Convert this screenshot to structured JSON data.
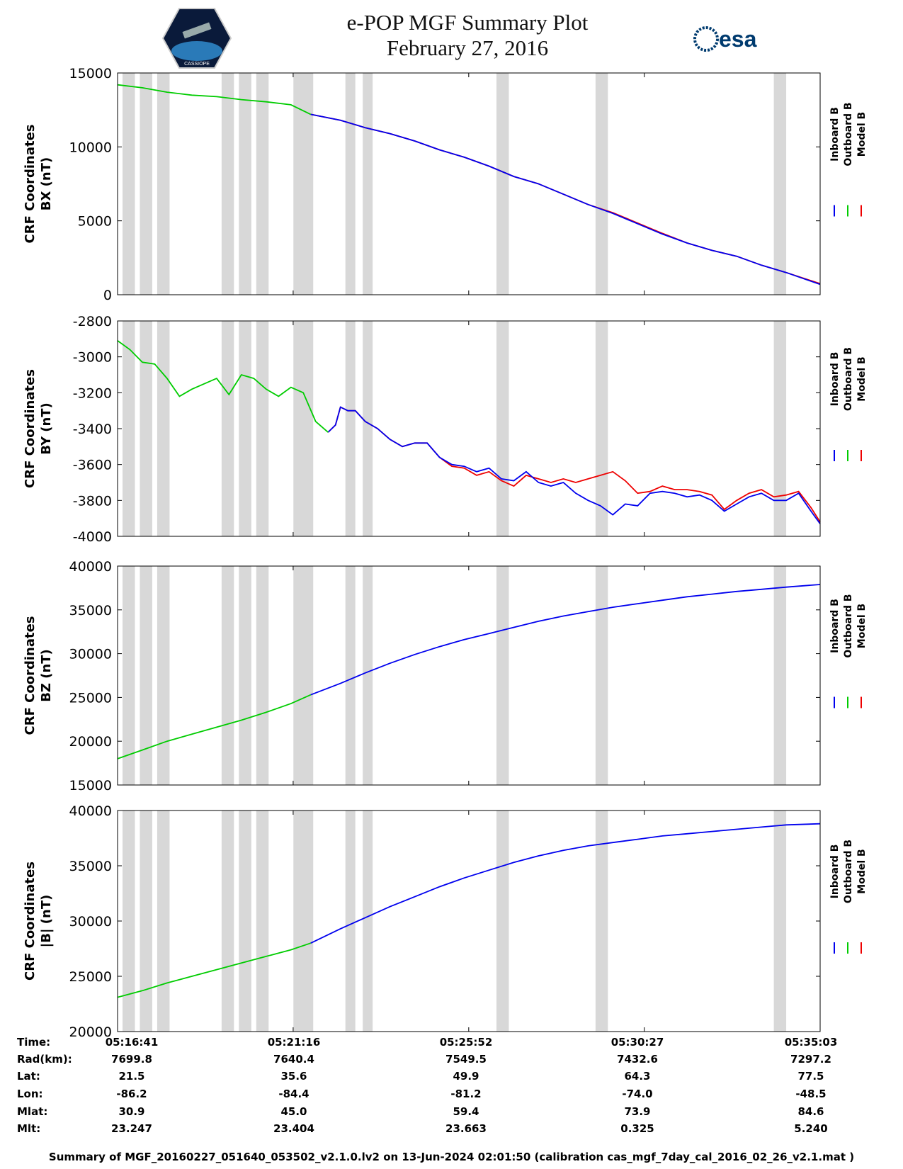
{
  "header": {
    "title_line1": "e-POP MGF Summary Plot",
    "title_line2": "February 27, 2016",
    "logo_left_text": "CASSIOPE",
    "logo_right_text": "esa"
  },
  "colors": {
    "inboard": "#0000ee",
    "outboard": "#00cc00",
    "model": "#ee0000",
    "gap": "#d8d8d8"
  },
  "legend": [
    "Inboard B",
    "Outboard B",
    "Model B"
  ],
  "x_axis": {
    "tick_labels": [
      "05:16:41",
      "05:21:16",
      "05:25:52",
      "05:30:27",
      "05:35:03"
    ]
  },
  "gap_intervals": [
    [
      0.2,
      0.7
    ],
    [
      0.9,
      1.4
    ],
    [
      1.6,
      2.1
    ],
    [
      4.2,
      4.7
    ],
    [
      4.9,
      5.4
    ],
    [
      5.6,
      6.1
    ],
    [
      7.1,
      7.9
    ],
    [
      9.2,
      9.6
    ],
    [
      9.9,
      10.3
    ],
    [
      15.3,
      15.8
    ],
    [
      19.3,
      19.8
    ],
    [
      26.5,
      27.0
    ]
  ],
  "chart_data": [
    {
      "type": "line",
      "ylabel_line1": "CRF Coordinates",
      "ylabel_line2": "BX (nT)",
      "ylim": [
        0,
        15000
      ],
      "yticks": [
        0,
        5000,
        10000,
        15000
      ],
      "xlim": [
        0,
        28.37
      ],
      "series": [
        {
          "name": "Outboard B",
          "x": [
            0,
            1,
            2,
            3,
            4,
            5,
            6,
            7,
            7.8
          ],
          "y": [
            14200,
            14000,
            13700,
            13500,
            13400,
            13200,
            13050,
            12850,
            12200
          ]
        },
        {
          "name": "Inboard B",
          "x": [
            7.8,
            9,
            10,
            11,
            12,
            13,
            14,
            15,
            16,
            17,
            18,
            19,
            20,
            21,
            22,
            23,
            24,
            25,
            26,
            27,
            28.37
          ],
          "y": [
            12200,
            11800,
            11300,
            10900,
            10400,
            9800,
            9300,
            8700,
            8000,
            7500,
            6800,
            6100,
            5500,
            4800,
            4100,
            3500,
            3000,
            2600,
            2000,
            1500,
            700
          ]
        },
        {
          "name": "Model B",
          "x": [
            7.8,
            9,
            10,
            11,
            12,
            13,
            14,
            15,
            16,
            17,
            18,
            19,
            20,
            21,
            22,
            23,
            24,
            25,
            26,
            27,
            28.37
          ],
          "y": [
            12200,
            11800,
            11300,
            10900,
            10400,
            9800,
            9300,
            8700,
            8000,
            7500,
            6800,
            6100,
            5550,
            4850,
            4150,
            3500,
            3000,
            2600,
            2000,
            1500,
            750
          ]
        }
      ]
    },
    {
      "type": "line",
      "ylabel_line1": "CRF Coordinates",
      "ylabel_line2": "BY (nT)",
      "ylim": [
        -4000,
        -2800
      ],
      "yticks": [
        -4000,
        -3800,
        -3600,
        -3400,
        -3200,
        -3000,
        -2800
      ],
      "xlim": [
        0,
        28.37
      ],
      "series": [
        {
          "name": "Outboard B",
          "x": [
            0,
            0.5,
            1,
            1.5,
            2,
            2.5,
            3,
            3.5,
            4,
            4.5,
            5,
            5.5,
            6,
            6.5,
            7,
            7.5,
            8,
            8.5
          ],
          "y": [
            -2910,
            -2960,
            -3030,
            -3040,
            -3120,
            -3220,
            -3180,
            -3150,
            -3120,
            -3210,
            -3100,
            -3120,
            -3180,
            -3220,
            -3170,
            -3200,
            -3360,
            -3420
          ]
        },
        {
          "name": "Inboard B",
          "x": [
            8.5,
            8.8,
            9,
            9.3,
            9.6,
            10,
            10.5,
            11,
            11.5,
            12,
            12.5,
            13,
            13.5,
            14,
            14.5,
            15,
            15.5,
            16,
            16.5,
            17,
            17.5,
            18,
            18.5,
            19,
            19.5,
            20,
            20.5,
            21,
            21.5,
            22,
            22.5,
            23,
            23.5,
            24,
            24.5,
            25,
            25.5,
            26,
            26.5,
            27,
            27.5,
            28,
            28.37
          ],
          "y": [
            -3420,
            -3380,
            -3280,
            -3300,
            -3300,
            -3360,
            -3400,
            -3460,
            -3500,
            -3480,
            -3480,
            -3560,
            -3600,
            -3610,
            -3640,
            -3620,
            -3680,
            -3690,
            -3640,
            -3700,
            -3720,
            -3700,
            -3760,
            -3800,
            -3830,
            -3880,
            -3820,
            -3830,
            -3760,
            -3750,
            -3760,
            -3780,
            -3770,
            -3800,
            -3860,
            -3820,
            -3780,
            -3760,
            -3800,
            -3800,
            -3760,
            -3860,
            -3930
          ]
        },
        {
          "name": "Model B",
          "x": [
            8.5,
            8.8,
            9,
            9.3,
            9.6,
            10,
            10.5,
            11,
            11.5,
            12,
            12.5,
            13,
            13.5,
            14,
            14.5,
            15,
            15.5,
            16,
            16.5,
            17,
            17.5,
            18,
            18.5,
            19,
            19.5,
            20,
            20.5,
            21,
            21.5,
            22,
            22.5,
            23,
            23.5,
            24,
            24.5,
            25,
            25.5,
            26,
            26.5,
            27,
            27.5,
            28,
            28.37
          ],
          "y": [
            -3420,
            -3380,
            -3280,
            -3300,
            -3300,
            -3360,
            -3400,
            -3460,
            -3500,
            -3480,
            -3480,
            -3560,
            -3610,
            -3620,
            -3660,
            -3640,
            -3690,
            -3720,
            -3660,
            -3680,
            -3700,
            -3680,
            -3700,
            -3680,
            -3660,
            -3640,
            -3690,
            -3760,
            -3750,
            -3720,
            -3740,
            -3740,
            -3750,
            -3770,
            -3850,
            -3800,
            -3760,
            -3740,
            -3780,
            -3770,
            -3750,
            -3840,
            -3920
          ]
        }
      ]
    },
    {
      "type": "line",
      "ylabel_line1": "CRF Coordinates",
      "ylabel_line2": "BZ (nT)",
      "ylim": [
        15000,
        40000
      ],
      "yticks": [
        15000,
        20000,
        25000,
        30000,
        35000,
        40000
      ],
      "xlim": [
        0,
        28.37
      ],
      "series": [
        {
          "name": "Outboard B",
          "x": [
            0,
            1,
            2,
            3,
            4,
            5,
            6,
            7,
            7.8
          ],
          "y": [
            18000,
            19000,
            20000,
            20800,
            21600,
            22400,
            23300,
            24300,
            25300
          ]
        },
        {
          "name": "Inboard B",
          "x": [
            7.8,
            9,
            10,
            11,
            12,
            13,
            14,
            15,
            16,
            17,
            18,
            19,
            20,
            21,
            22,
            23,
            24,
            25,
            26,
            27,
            28.37
          ],
          "y": [
            25300,
            26600,
            27800,
            28900,
            29900,
            30800,
            31600,
            32300,
            33000,
            33700,
            34300,
            34800,
            35300,
            35700,
            36100,
            36500,
            36800,
            37100,
            37350,
            37600,
            37900
          ]
        }
      ]
    },
    {
      "type": "line",
      "ylabel_line1": "CRF Coordinates",
      "ylabel_line2": "|B| (nT)",
      "ylim": [
        20000,
        40000
      ],
      "yticks": [
        20000,
        25000,
        30000,
        35000,
        40000
      ],
      "xlim": [
        0,
        28.37
      ],
      "series": [
        {
          "name": "Outboard B",
          "x": [
            0,
            1,
            2,
            3,
            4,
            5,
            6,
            7,
            7.8
          ],
          "y": [
            23100,
            23700,
            24400,
            25000,
            25600,
            26200,
            26800,
            27400,
            28000
          ]
        },
        {
          "name": "Inboard B",
          "x": [
            7.8,
            9,
            10,
            11,
            12,
            13,
            14,
            15,
            16,
            17,
            18,
            19,
            20,
            21,
            22,
            23,
            24,
            25,
            26,
            27,
            28.37
          ],
          "y": [
            28000,
            29300,
            30300,
            31300,
            32200,
            33100,
            33900,
            34600,
            35300,
            35900,
            36400,
            36800,
            37100,
            37400,
            37700,
            37900,
            38100,
            38300,
            38500,
            38700,
            38800
          ]
        }
      ]
    }
  ],
  "footer": {
    "row_labels": [
      "Time:",
      "Rad(km):",
      "Lat:",
      "Lon:",
      "Mlat:",
      "Mlt:"
    ],
    "columns": [
      [
        "05:16:41",
        "7699.8",
        "21.5",
        "-86.2",
        "30.9",
        "23.247"
      ],
      [
        "05:21:16",
        "7640.4",
        "35.6",
        "-84.4",
        "45.0",
        "23.404"
      ],
      [
        "05:25:52",
        "7549.5",
        "49.9",
        "-81.2",
        "59.4",
        "23.663"
      ],
      [
        "05:30:27",
        "7432.6",
        "64.3",
        "-74.0",
        "73.9",
        "0.325"
      ],
      [
        "05:35:03",
        "7297.2",
        "77.5",
        "-48.5",
        "84.6",
        "5.240"
      ]
    ],
    "note": "Summary of MGF_20160227_051640_053502_v2.1.0.lv2 on 13-Jun-2024 02:01:50 (calibration cas_mgf_7day_cal_2016_02_26_v2.1.mat )"
  }
}
